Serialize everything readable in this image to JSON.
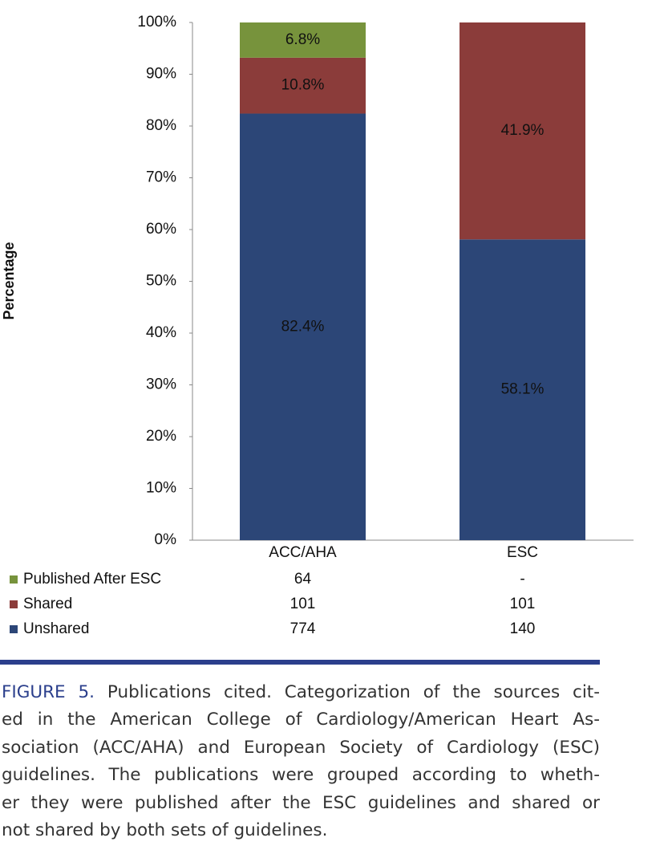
{
  "chart_data": {
    "type": "stacked_bar",
    "y_label": "Percentage",
    "categories": [
      "ACC/AHA",
      "ESC"
    ],
    "series": [
      {
        "name": "Unshared",
        "color": "#2c4677",
        "values": [
          82.4,
          58.1
        ],
        "value_labels": [
          "82.4%",
          "58.1%"
        ],
        "table": [
          774,
          140
        ]
      },
      {
        "name": "Shared",
        "color": "#8b3c3a",
        "values": [
          10.8,
          41.9
        ],
        "value_labels": [
          "10.8%",
          "41.9%"
        ],
        "table": [
          101,
          101
        ]
      },
      {
        "name": "Published After ESC",
        "color": "#77933c",
        "values": [
          6.8,
          null
        ],
        "value_labels": [
          "6.8%",
          null
        ],
        "table": [
          64,
          "-"
        ]
      }
    ],
    "ylim": [
      0,
      100
    ],
    "yticks": [
      {
        "value": 0,
        "label": "0%"
      },
      {
        "value": 10,
        "label": "10%"
      },
      {
        "value": 20,
        "label": "20%"
      },
      {
        "value": 30,
        "label": "30%"
      },
      {
        "value": 40,
        "label": "40%"
      },
      {
        "value": 50,
        "label": "50%"
      },
      {
        "value": 60,
        "label": "60%"
      },
      {
        "value": 70,
        "label": "70%"
      },
      {
        "value": 80,
        "label": "80%"
      },
      {
        "value": 90,
        "label": "90%"
      },
      {
        "value": 100,
        "label": "100%"
      }
    ]
  },
  "caption": {
    "label": "FIGURE 5.",
    "lines": [
      "Publications cited. Categorization of the sources cit-",
      "ed in the American College of Cardiology/American Heart As-",
      "sociation (ACC/AHA) and European Society of Cardiology (ESC)",
      "guidelines. The publications were grouped according to wheth-",
      "er they were published after the ESC guidelines and shared or",
      "not shared by both sets of guidelines."
    ]
  }
}
